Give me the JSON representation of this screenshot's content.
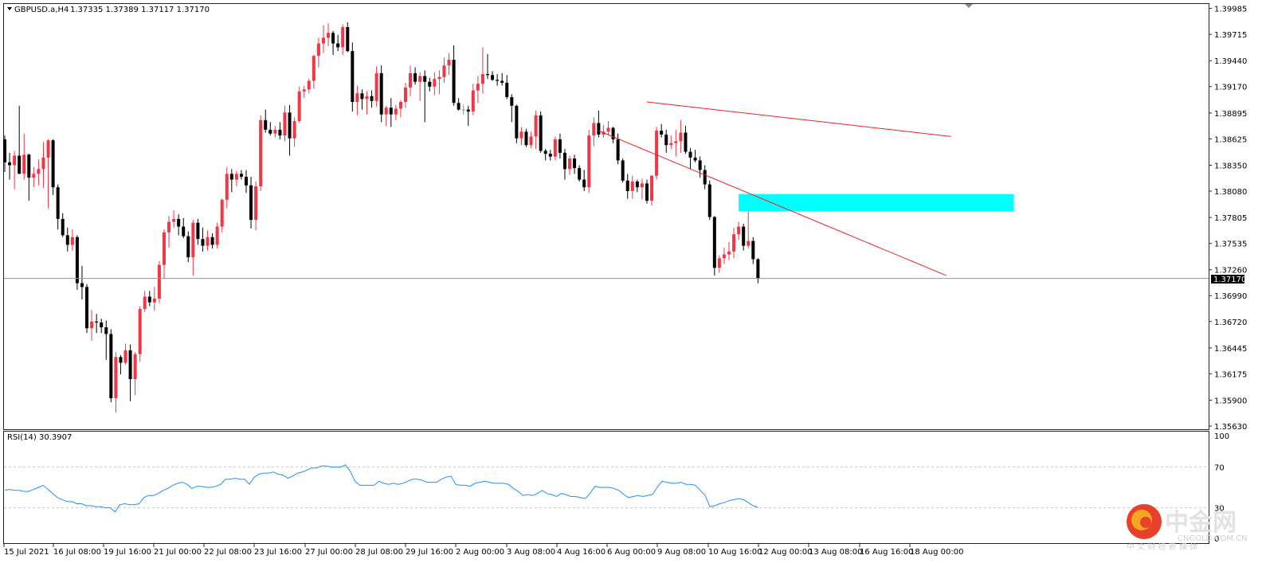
{
  "colors": {
    "bull": "#f23645",
    "bear": "#000000",
    "doji_green": "#34c759",
    "trendline": "#ee2020",
    "zone": "#00ffff",
    "price_line": "#8899aa",
    "rsi_line": "#1e90ff",
    "grid": "#c8c8c8",
    "watermark_red": "#e8402a",
    "watermark_orange": "#f5a623"
  },
  "header": {
    "symbol_label": "GBPUSD.a,H4",
    "ohlc": "1.37335 1.37389 1.37117 1.37170"
  },
  "rsi_panel": {
    "label": "RSI(14) 30.3907",
    "levels": [
      "100",
      "70",
      "30",
      "0"
    ]
  },
  "current_price_label": "1.37170",
  "watermark": {
    "brand": "中金网",
    "url": "CNGOLD.COM.CN",
    "tagline": "中 文 财 经 新 媒 体"
  },
  "chart_data": {
    "type": "candlestick",
    "symbol": "GBPUSD.a",
    "timeframe": "H4",
    "ylim": [
      1.3563,
      1.3999
    ],
    "y_ticks": [
      "1.39985",
      "1.39715",
      "1.39440",
      "1.39170",
      "1.38895",
      "1.38625",
      "1.38350",
      "1.38080",
      "1.37805",
      "1.37535",
      "1.37260",
      "1.36990",
      "1.36720",
      "1.36445",
      "1.36175",
      "1.35900",
      "1.35630"
    ],
    "x_ticks": [
      "15 Jul 2021",
      "16 Jul 08:00",
      "19 Jul 16:00",
      "21 Jul 00:00",
      "22 Jul 08:00",
      "23 Jul 16:00",
      "27 Jul 00:00",
      "28 Jul 08:00",
      "29 Jul 16:00",
      "2 Aug 00:00",
      "3 Aug 08:00",
      "4 Aug 16:00",
      "6 Aug 00:00",
      "9 Aug 08:00",
      "10 Aug 16:00",
      "12 Aug 00:00",
      "13 Aug 08:00",
      "16 Aug 16:00",
      "18 Aug 00:00"
    ],
    "current_price": 1.3717,
    "candles": [
      {
        "o": 1.3862,
        "h": 1.3866,
        "l": 1.3828,
        "c": 1.3838
      },
      {
        "o": 1.3838,
        "h": 1.3848,
        "l": 1.382,
        "c": 1.3835
      },
      {
        "o": 1.3835,
        "h": 1.385,
        "l": 1.381,
        "c": 1.3845
      },
      {
        "o": 1.3845,
        "h": 1.3897,
        "l": 1.3828,
        "c": 1.3826
      },
      {
        "o": 1.3826,
        "h": 1.3868,
        "l": 1.382,
        "c": 1.3846
      },
      {
        "o": 1.3846,
        "h": 1.3847,
        "l": 1.3798,
        "c": 1.3822
      },
      {
        "o": 1.3822,
        "h": 1.3833,
        "l": 1.3812,
        "c": 1.3826
      },
      {
        "o": 1.3826,
        "h": 1.3841,
        "l": 1.3814,
        "c": 1.3831
      },
      {
        "o": 1.3831,
        "h": 1.3859,
        "l": 1.3811,
        "c": 1.3843
      },
      {
        "o": 1.3843,
        "h": 1.3862,
        "l": 1.379,
        "c": 1.3861
      },
      {
        "o": 1.3861,
        "h": 1.3862,
        "l": 1.3804,
        "c": 1.3812
      },
      {
        "o": 1.3812,
        "h": 1.3815,
        "l": 1.3768,
        "c": 1.3779
      },
      {
        "o": 1.3779,
        "h": 1.3785,
        "l": 1.376,
        "c": 1.3762
      },
      {
        "o": 1.3762,
        "h": 1.377,
        "l": 1.3745,
        "c": 1.3752
      },
      {
        "o": 1.3752,
        "h": 1.3768,
        "l": 1.3746,
        "c": 1.376
      },
      {
        "o": 1.376,
        "h": 1.3762,
        "l": 1.3705,
        "c": 1.3712
      },
      {
        "o": 1.3712,
        "h": 1.373,
        "l": 1.3695,
        "c": 1.3708
      },
      {
        "o": 1.3708,
        "h": 1.3711,
        "l": 1.366,
        "c": 1.3665
      },
      {
        "o": 1.3665,
        "h": 1.3684,
        "l": 1.3652,
        "c": 1.3672
      },
      {
        "o": 1.3672,
        "h": 1.368,
        "l": 1.366,
        "c": 1.3671
      },
      {
        "o": 1.3671,
        "h": 1.3675,
        "l": 1.366,
        "c": 1.3666
      },
      {
        "o": 1.3666,
        "h": 1.3673,
        "l": 1.3632,
        "c": 1.3659
      },
      {
        "o": 1.3659,
        "h": 1.3664,
        "l": 1.3588,
        "c": 1.3592
      },
      {
        "o": 1.3592,
        "h": 1.364,
        "l": 1.3577,
        "c": 1.3635
      },
      {
        "o": 1.3635,
        "h": 1.3637,
        "l": 1.3617,
        "c": 1.3629
      },
      {
        "o": 1.3629,
        "h": 1.3649,
        "l": 1.3627,
        "c": 1.3642
      },
      {
        "o": 1.3642,
        "h": 1.3648,
        "l": 1.3589,
        "c": 1.3612
      },
      {
        "o": 1.3612,
        "h": 1.364,
        "l": 1.3595,
        "c": 1.3638
      },
      {
        "o": 1.3638,
        "h": 1.3688,
        "l": 1.363,
        "c": 1.3685
      },
      {
        "o": 1.3685,
        "h": 1.3704,
        "l": 1.3682,
        "c": 1.3698
      },
      {
        "o": 1.3698,
        "h": 1.3704,
        "l": 1.3688,
        "c": 1.3692
      },
      {
        "o": 1.3692,
        "h": 1.3708,
        "l": 1.3683,
        "c": 1.3696
      },
      {
        "o": 1.3696,
        "h": 1.3735,
        "l": 1.3691,
        "c": 1.3731
      },
      {
        "o": 1.3731,
        "h": 1.3768,
        "l": 1.3717,
        "c": 1.3765
      },
      {
        "o": 1.3765,
        "h": 1.3782,
        "l": 1.3749,
        "c": 1.3776
      },
      {
        "o": 1.3776,
        "h": 1.3788,
        "l": 1.377,
        "c": 1.3779
      },
      {
        "o": 1.3779,
        "h": 1.3784,
        "l": 1.3762,
        "c": 1.3771
      },
      {
        "o": 1.3771,
        "h": 1.378,
        "l": 1.3759,
        "c": 1.3761
      },
      {
        "o": 1.3761,
        "h": 1.3766,
        "l": 1.3734,
        "c": 1.3739
      },
      {
        "o": 1.3739,
        "h": 1.3778,
        "l": 1.372,
        "c": 1.3775
      },
      {
        "o": 1.3775,
        "h": 1.3779,
        "l": 1.3752,
        "c": 1.3758
      },
      {
        "o": 1.3758,
        "h": 1.377,
        "l": 1.3745,
        "c": 1.3751
      },
      {
        "o": 1.3751,
        "h": 1.3767,
        "l": 1.3746,
        "c": 1.376
      },
      {
        "o": 1.376,
        "h": 1.3764,
        "l": 1.3748,
        "c": 1.3752
      },
      {
        "o": 1.3752,
        "h": 1.3775,
        "l": 1.3748,
        "c": 1.3771
      },
      {
        "o": 1.3771,
        "h": 1.38,
        "l": 1.3765,
        "c": 1.3799
      },
      {
        "o": 1.3799,
        "h": 1.3833,
        "l": 1.379,
        "c": 1.3826
      },
      {
        "o": 1.3826,
        "h": 1.3831,
        "l": 1.3807,
        "c": 1.382
      },
      {
        "o": 1.382,
        "h": 1.3829,
        "l": 1.3813,
        "c": 1.3826
      },
      {
        "o": 1.3826,
        "h": 1.383,
        "l": 1.382,
        "c": 1.3823
      },
      {
        "o": 1.3823,
        "h": 1.383,
        "l": 1.3806,
        "c": 1.3814
      },
      {
        "o": 1.3814,
        "h": 1.3823,
        "l": 1.3769,
        "c": 1.3778
      },
      {
        "o": 1.3778,
        "h": 1.3818,
        "l": 1.3767,
        "c": 1.3813
      },
      {
        "o": 1.3813,
        "h": 1.3887,
        "l": 1.3808,
        "c": 1.3882
      },
      {
        "o": 1.3882,
        "h": 1.3893,
        "l": 1.3869,
        "c": 1.3872
      },
      {
        "o": 1.3872,
        "h": 1.388,
        "l": 1.3866,
        "c": 1.3868
      },
      {
        "o": 1.3868,
        "h": 1.3876,
        "l": 1.3864,
        "c": 1.3872
      },
      {
        "o": 1.3872,
        "h": 1.388,
        "l": 1.3862,
        "c": 1.3866
      },
      {
        "o": 1.3866,
        "h": 1.3897,
        "l": 1.386,
        "c": 1.389
      },
      {
        "o": 1.389,
        "h": 1.3898,
        "l": 1.3845,
        "c": 1.3863
      },
      {
        "o": 1.3863,
        "h": 1.3885,
        "l": 1.3854,
        "c": 1.3881
      },
      {
        "o": 1.3881,
        "h": 1.3917,
        "l": 1.3879,
        "c": 1.3912
      },
      {
        "o": 1.3912,
        "h": 1.3918,
        "l": 1.3905,
        "c": 1.3914
      },
      {
        "o": 1.3914,
        "h": 1.3925,
        "l": 1.391,
        "c": 1.3923
      },
      {
        "o": 1.3923,
        "h": 1.395,
        "l": 1.3915,
        "c": 1.3949
      },
      {
        "o": 1.3949,
        "h": 1.3968,
        "l": 1.3937,
        "c": 1.3962
      },
      {
        "o": 1.3962,
        "h": 1.3981,
        "l": 1.3952,
        "c": 1.3968
      },
      {
        "o": 1.3968,
        "h": 1.3983,
        "l": 1.3959,
        "c": 1.3973
      },
      {
        "o": 1.3973,
        "h": 1.3975,
        "l": 1.395,
        "c": 1.3962
      },
      {
        "o": 1.3962,
        "h": 1.3971,
        "l": 1.3954,
        "c": 1.3958
      },
      {
        "o": 1.3958,
        "h": 1.3982,
        "l": 1.395,
        "c": 1.3979
      },
      {
        "o": 1.3979,
        "h": 1.3984,
        "l": 1.3953,
        "c": 1.3954
      },
      {
        "o": 1.3954,
        "h": 1.3963,
        "l": 1.3891,
        "c": 1.3901
      },
      {
        "o": 1.3901,
        "h": 1.3918,
        "l": 1.3887,
        "c": 1.391
      },
      {
        "o": 1.391,
        "h": 1.3914,
        "l": 1.3893,
        "c": 1.3904
      },
      {
        "o": 1.3904,
        "h": 1.3912,
        "l": 1.3888,
        "c": 1.3907
      },
      {
        "o": 1.3907,
        "h": 1.3913,
        "l": 1.3895,
        "c": 1.3902
      },
      {
        "o": 1.3902,
        "h": 1.3938,
        "l": 1.3896,
        "c": 1.3931
      },
      {
        "o": 1.3931,
        "h": 1.3939,
        "l": 1.388,
        "c": 1.3888
      },
      {
        "o": 1.3888,
        "h": 1.3897,
        "l": 1.3876,
        "c": 1.3895
      },
      {
        "o": 1.3895,
        "h": 1.3905,
        "l": 1.3875,
        "c": 1.3888
      },
      {
        "o": 1.3888,
        "h": 1.3898,
        "l": 1.3882,
        "c": 1.3894
      },
      {
        "o": 1.3894,
        "h": 1.3903,
        "l": 1.3885,
        "c": 1.3901
      },
      {
        "o": 1.3901,
        "h": 1.3921,
        "l": 1.3895,
        "c": 1.3916
      },
      {
        "o": 1.3916,
        "h": 1.3939,
        "l": 1.3907,
        "c": 1.3931
      },
      {
        "o": 1.3931,
        "h": 1.3937,
        "l": 1.3919,
        "c": 1.3922
      },
      {
        "o": 1.3922,
        "h": 1.3932,
        "l": 1.3902,
        "c": 1.3928
      },
      {
        "o": 1.3928,
        "h": 1.3934,
        "l": 1.388,
        "c": 1.3922
      },
      {
        "o": 1.3922,
        "h": 1.3926,
        "l": 1.3912,
        "c": 1.3917
      },
      {
        "o": 1.3917,
        "h": 1.3932,
        "l": 1.3908,
        "c": 1.3925
      },
      {
        "o": 1.3925,
        "h": 1.3934,
        "l": 1.3909,
        "c": 1.3927
      },
      {
        "o": 1.3927,
        "h": 1.3947,
        "l": 1.3921,
        "c": 1.3939
      },
      {
        "o": 1.3939,
        "h": 1.3952,
        "l": 1.3929,
        "c": 1.3945
      },
      {
        "o": 1.3945,
        "h": 1.396,
        "l": 1.3897,
        "c": 1.39
      },
      {
        "o": 1.39,
        "h": 1.3905,
        "l": 1.3892,
        "c": 1.3893
      },
      {
        "o": 1.3893,
        "h": 1.3898,
        "l": 1.3888,
        "c": 1.3893
      },
      {
        "o": 1.3893,
        "h": 1.3897,
        "l": 1.3876,
        "c": 1.3891
      },
      {
        "o": 1.3891,
        "h": 1.392,
        "l": 1.3887,
        "c": 1.3913
      },
      {
        "o": 1.3913,
        "h": 1.3928,
        "l": 1.39,
        "c": 1.392
      },
      {
        "o": 1.392,
        "h": 1.3958,
        "l": 1.391,
        "c": 1.393
      },
      {
        "o": 1.393,
        "h": 1.3951,
        "l": 1.3925,
        "c": 1.3929
      },
      {
        "o": 1.3929,
        "h": 1.3933,
        "l": 1.3923,
        "c": 1.3924
      },
      {
        "o": 1.3924,
        "h": 1.393,
        "l": 1.3918,
        "c": 1.3923
      },
      {
        "o": 1.3923,
        "h": 1.3931,
        "l": 1.3918,
        "c": 1.3921
      },
      {
        "o": 1.3921,
        "h": 1.3929,
        "l": 1.3904,
        "c": 1.3906
      },
      {
        "o": 1.3906,
        "h": 1.3909,
        "l": 1.388,
        "c": 1.3897
      },
      {
        "o": 1.3897,
        "h": 1.3898,
        "l": 1.3858,
        "c": 1.3863
      },
      {
        "o": 1.3863,
        "h": 1.3875,
        "l": 1.3856,
        "c": 1.387
      },
      {
        "o": 1.387,
        "h": 1.3873,
        "l": 1.3854,
        "c": 1.3856
      },
      {
        "o": 1.3856,
        "h": 1.387,
        "l": 1.3853,
        "c": 1.3865
      },
      {
        "o": 1.3865,
        "h": 1.3892,
        "l": 1.3852,
        "c": 1.3887
      },
      {
        "o": 1.3887,
        "h": 1.3891,
        "l": 1.3848,
        "c": 1.385
      },
      {
        "o": 1.385,
        "h": 1.3852,
        "l": 1.384,
        "c": 1.3847
      },
      {
        "o": 1.3847,
        "h": 1.3851,
        "l": 1.384,
        "c": 1.3844
      },
      {
        "o": 1.3844,
        "h": 1.3865,
        "l": 1.384,
        "c": 1.3862
      },
      {
        "o": 1.3862,
        "h": 1.3868,
        "l": 1.3842,
        "c": 1.3848
      },
      {
        "o": 1.3848,
        "h": 1.3852,
        "l": 1.382,
        "c": 1.3831
      },
      {
        "o": 1.3831,
        "h": 1.3845,
        "l": 1.3825,
        "c": 1.3842
      },
      {
        "o": 1.3842,
        "h": 1.3846,
        "l": 1.3826,
        "c": 1.3832
      },
      {
        "o": 1.3832,
        "h": 1.3835,
        "l": 1.3818,
        "c": 1.382
      },
      {
        "o": 1.382,
        "h": 1.383,
        "l": 1.3808,
        "c": 1.3812
      },
      {
        "o": 1.3812,
        "h": 1.3872,
        "l": 1.3806,
        "c": 1.3866
      },
      {
        "o": 1.3866,
        "h": 1.3885,
        "l": 1.3855,
        "c": 1.3879
      },
      {
        "o": 1.3879,
        "h": 1.3892,
        "l": 1.3864,
        "c": 1.3867
      },
      {
        "o": 1.3867,
        "h": 1.3877,
        "l": 1.3864,
        "c": 1.387
      },
      {
        "o": 1.387,
        "h": 1.3881,
        "l": 1.3866,
        "c": 1.3874
      },
      {
        "o": 1.3874,
        "h": 1.3875,
        "l": 1.3858,
        "c": 1.3862
      },
      {
        "o": 1.3862,
        "h": 1.3868,
        "l": 1.3836,
        "c": 1.384
      },
      {
        "o": 1.384,
        "h": 1.3842,
        "l": 1.3817,
        "c": 1.3819
      },
      {
        "o": 1.3819,
        "h": 1.3826,
        "l": 1.38,
        "c": 1.3808
      },
      {
        "o": 1.3808,
        "h": 1.3824,
        "l": 1.38,
        "c": 1.3818
      },
      {
        "o": 1.3818,
        "h": 1.382,
        "l": 1.3807,
        "c": 1.3812
      },
      {
        "o": 1.3812,
        "h": 1.3821,
        "l": 1.3799,
        "c": 1.3816
      },
      {
        "o": 1.3816,
        "h": 1.382,
        "l": 1.3795,
        "c": 1.3798
      },
      {
        "o": 1.3798,
        "h": 1.3825,
        "l": 1.3793,
        "c": 1.3824
      },
      {
        "o": 1.3824,
        "h": 1.3875,
        "l": 1.382,
        "c": 1.3871
      },
      {
        "o": 1.3871,
        "h": 1.3878,
        "l": 1.3864,
        "c": 1.3867
      },
      {
        "o": 1.3867,
        "h": 1.3872,
        "l": 1.3848,
        "c": 1.3856
      },
      {
        "o": 1.3856,
        "h": 1.3866,
        "l": 1.3852,
        "c": 1.3858
      },
      {
        "o": 1.3858,
        "h": 1.3872,
        "l": 1.3844,
        "c": 1.386
      },
      {
        "o": 1.386,
        "h": 1.3882,
        "l": 1.3848,
        "c": 1.3869
      },
      {
        "o": 1.3869,
        "h": 1.3876,
        "l": 1.3847,
        "c": 1.3849
      },
      {
        "o": 1.3849,
        "h": 1.3853,
        "l": 1.3831,
        "c": 1.3843
      },
      {
        "o": 1.3843,
        "h": 1.3851,
        "l": 1.3838,
        "c": 1.384
      },
      {
        "o": 1.384,
        "h": 1.3844,
        "l": 1.3822,
        "c": 1.383
      },
      {
        "o": 1.383,
        "h": 1.3835,
        "l": 1.381,
        "c": 1.3815
      },
      {
        "o": 1.3815,
        "h": 1.3819,
        "l": 1.3778,
        "c": 1.3781
      },
      {
        "o": 1.3781,
        "h": 1.3782,
        "l": 1.372,
        "c": 1.3728
      },
      {
        "o": 1.3728,
        "h": 1.3741,
        "l": 1.3723,
        "c": 1.3738
      },
      {
        "o": 1.3738,
        "h": 1.3749,
        "l": 1.3732,
        "c": 1.3742
      },
      {
        "o": 1.3742,
        "h": 1.3755,
        "l": 1.3736,
        "c": 1.3745
      },
      {
        "o": 1.3745,
        "h": 1.377,
        "l": 1.3738,
        "c": 1.3763
      },
      {
        "o": 1.3763,
        "h": 1.3776,
        "l": 1.3757,
        "c": 1.3771
      },
      {
        "o": 1.3771,
        "h": 1.3774,
        "l": 1.3746,
        "c": 1.3751
      },
      {
        "o": 1.3751,
        "h": 1.3787,
        "l": 1.3748,
        "c": 1.3756
      },
      {
        "o": 1.3756,
        "h": 1.376,
        "l": 1.3732,
        "c": 1.3737
      },
      {
        "o": 1.3737,
        "h": 1.3738,
        "l": 1.3712,
        "c": 1.3717
      }
    ],
    "overlays": {
      "upper_trendline": [
        {
          "i": 133,
          "p": 1.3901
        },
        {
          "i": 196,
          "p": 1.3865
        }
      ],
      "lower_trendline": [
        {
          "i": 123,
          "p": 1.3871
        },
        {
          "i": 195,
          "p": 1.372
        }
      ],
      "support_zone": {
        "i_from": 152,
        "i_to": 209,
        "p_low": 1.3787,
        "p_high": 1.3805
      }
    },
    "rsi": {
      "name": "RSI(14)",
      "last_value": 30.3907,
      "levels": [
        70,
        30
      ],
      "ylim": [
        0,
        100
      ],
      "values": [
        47,
        48,
        47,
        47,
        46,
        46,
        48,
        50,
        52,
        48,
        44,
        40,
        38,
        36,
        36,
        34,
        34,
        32,
        32,
        31,
        31,
        30,
        30,
        26,
        33,
        34,
        33,
        33,
        34,
        40,
        42,
        42,
        44,
        47,
        49,
        52,
        54,
        55,
        53,
        49,
        51,
        51,
        50,
        50,
        51,
        53,
        58,
        58,
        59,
        58,
        58,
        53,
        60,
        63,
        64,
        64,
        65,
        63,
        62,
        59,
        61,
        64,
        65,
        67,
        69,
        69,
        71,
        71,
        70,
        70,
        70,
        72,
        66,
        56,
        52,
        52,
        52,
        52,
        56,
        54,
        53,
        54,
        53,
        54,
        56,
        58,
        58,
        57,
        55,
        55,
        55,
        58,
        60,
        61,
        53,
        52,
        52,
        51,
        54,
        55,
        56,
        55,
        54,
        54,
        54,
        53,
        49,
        46,
        42,
        43,
        42,
        44,
        47,
        44,
        43,
        41,
        44,
        43,
        41,
        41,
        40,
        39,
        44,
        51,
        50,
        50,
        50,
        49,
        47,
        43,
        40,
        41,
        42,
        41,
        42,
        43,
        50,
        56,
        55,
        54,
        54,
        55,
        53,
        53,
        52,
        47,
        42,
        31,
        32,
        34,
        35,
        37,
        38,
        39,
        38,
        35,
        32,
        30.4
      ]
    }
  }
}
